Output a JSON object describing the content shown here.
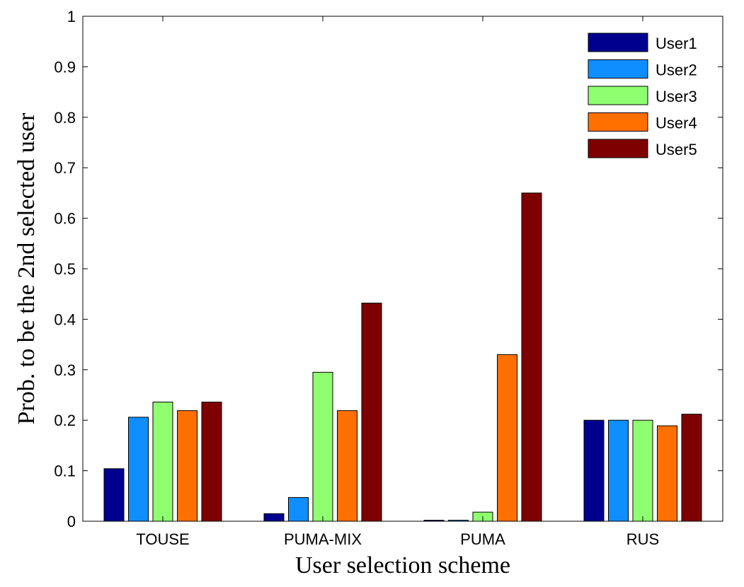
{
  "chart_data": {
    "type": "bar",
    "title": "",
    "xlabel": "User selection scheme",
    "ylabel": "Prob. to be the 2nd selected user",
    "categories": [
      "TOUSE",
      "PUMA-MIX",
      "PUMA",
      "RUS"
    ],
    "ylim": [
      0,
      1
    ],
    "yticks": [
      0,
      0.1,
      0.2,
      0.3,
      0.4,
      0.5,
      0.6,
      0.7,
      0.8,
      0.9,
      1
    ],
    "ytick_labels": [
      "0",
      "0.1",
      "0.2",
      "0.3",
      "0.4",
      "0.5",
      "0.6",
      "0.7",
      "0.8",
      "0.9",
      "1"
    ],
    "grid": false,
    "legend_position": "top-right",
    "series": [
      {
        "name": "User1",
        "color": "#00008f",
        "values": [
          0.104,
          0.015,
          0.002,
          0.2
        ]
      },
      {
        "name": "User2",
        "color": "#0f8fff",
        "values": [
          0.206,
          0.047,
          0.002,
          0.2
        ]
      },
      {
        "name": "User3",
        "color": "#8fff70",
        "values": [
          0.236,
          0.295,
          0.018,
          0.2
        ]
      },
      {
        "name": "User4",
        "color": "#ff7000",
        "values": [
          0.219,
          0.219,
          0.33,
          0.189
        ]
      },
      {
        "name": "User5",
        "color": "#7f0000",
        "values": [
          0.236,
          0.432,
          0.65,
          0.212
        ]
      }
    ]
  }
}
